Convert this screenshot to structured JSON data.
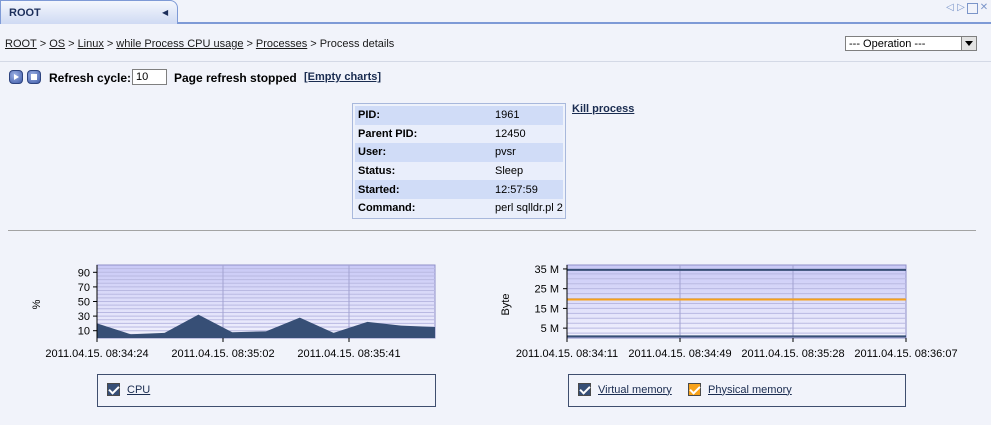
{
  "tab": {
    "title": "ROOT"
  },
  "breadcrumb": {
    "items": [
      "ROOT",
      "OS",
      "Linux",
      "while Process CPU usage",
      "Processes"
    ],
    "current": "Process details",
    "sep": ">"
  },
  "operation_select": {
    "value": "--- Operation ---"
  },
  "refresh": {
    "label": "Refresh cycle:",
    "value": "10",
    "status": "Page refresh stopped",
    "empty_charts": "[Empty charts]"
  },
  "process": {
    "rows": [
      {
        "key": "PID:",
        "value": "1961"
      },
      {
        "key": "Parent PID:",
        "value": "12450"
      },
      {
        "key": "User:",
        "value": "pvsr"
      },
      {
        "key": "Status:",
        "value": "Sleep"
      },
      {
        "key": "Started:",
        "value": "12:57:59"
      },
      {
        "key": "Command:",
        "value": "perl sqlldr.pl 2"
      }
    ],
    "kill_label": "Kill process"
  },
  "colors": {
    "cpu": "#374f76",
    "virtual": "#374f76",
    "physical": "#f7a21b"
  },
  "chart_data": [
    {
      "type": "area",
      "ylabel": "%",
      "ylim": [
        0,
        100
      ],
      "yticks": [
        10,
        30,
        50,
        70,
        90
      ],
      "xlabels": [
        "2011.04.15. 08:34:24",
        "2011.04.15. 08:35:02",
        "2011.04.15. 08:35:41"
      ],
      "x": [
        0,
        1,
        2,
        3,
        4,
        5,
        6,
        7,
        8,
        9,
        10
      ],
      "series": [
        {
          "name": "CPU",
          "values": [
            20,
            5,
            7,
            32,
            8,
            9,
            28,
            7,
            22,
            17,
            15
          ]
        }
      ],
      "legend": [
        "CPU"
      ]
    },
    {
      "type": "line",
      "ylabel": "Byte",
      "ylim": [
        0,
        37
      ],
      "yticks": [
        "5 M",
        "15 M",
        "25 M",
        "35 M"
      ],
      "ytick_values": [
        5,
        15,
        25,
        35
      ],
      "xlabels": [
        "2011.04.15. 08:34:11",
        "2011.04.15. 08:34:49",
        "2011.04.15. 08:35:28",
        "2011.04.15. 08:36:07"
      ],
      "series": [
        {
          "name": "Virtual memory",
          "values": [
            34.5,
            34.5
          ]
        },
        {
          "name": "Physical memory",
          "values": [
            19.5,
            19.5
          ]
        },
        {
          "name": "",
          "values": [
            0.8,
            0.8
          ]
        }
      ],
      "legend": [
        "Virtual memory",
        "Physical memory"
      ]
    }
  ]
}
